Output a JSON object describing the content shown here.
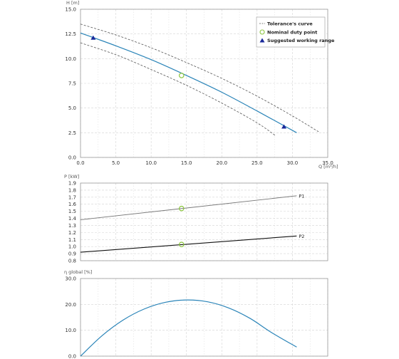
{
  "colors": {
    "main_curve": "#2a84b8",
    "tolerance": "#555555",
    "duty_point": "#8cc63f",
    "working_range": "#1a2a9a",
    "p1": "#777777",
    "p2": "#111111",
    "efficiency": "#2a84b8",
    "grid": "#d4d4d4"
  },
  "chart_data": [
    {
      "id": "head",
      "type": "line",
      "xlabel": "Q [m³/h]",
      "ylabel": "H [m]",
      "xlim": [
        0,
        35
      ],
      "ylim": [
        0,
        15
      ],
      "x_ticks": [
        "0.0",
        "5.0",
        "10.0",
        "15.0",
        "20.0",
        "25.0",
        "30.0",
        "35.0"
      ],
      "y_ticks": [
        "0.0",
        "2.5",
        "5.0",
        "7.5",
        "10.0",
        "12.5",
        "15.0"
      ],
      "grid": true,
      "legend": {
        "placement": "top-right",
        "entries": [
          "Tolerance's curve",
          "Nominal duty point",
          "Suggested working range"
        ]
      },
      "series": [
        {
          "key": "main",
          "style": "solid",
          "x": [
            0,
            5,
            10,
            15,
            20,
            25,
            30.6
          ],
          "y": [
            12.6,
            11.3,
            9.9,
            8.3,
            6.6,
            4.7,
            2.5
          ]
        },
        {
          "key": "tol_upper",
          "style": "dashed",
          "x": [
            0,
            5,
            10,
            15,
            20,
            25,
            30,
            33.7
          ],
          "y": [
            13.5,
            12.4,
            11.1,
            9.6,
            8.0,
            6.2,
            4.2,
            2.6
          ]
        },
        {
          "key": "tol_lower",
          "style": "dashed",
          "x": [
            0,
            5,
            10,
            15,
            20,
            25,
            27.6
          ],
          "y": [
            11.6,
            10.4,
            8.9,
            7.3,
            5.5,
            3.5,
            2.2
          ]
        }
      ],
      "points": [
        {
          "key": "duty",
          "marker": "circle",
          "x": 14.3,
          "y": 8.3
        },
        {
          "key": "range_start",
          "marker": "triangle",
          "x": 1.8,
          "y": 12.1
        },
        {
          "key": "range_end",
          "marker": "triangle",
          "x": 28.8,
          "y": 3.1
        }
      ]
    },
    {
      "id": "power",
      "type": "line",
      "xlabel": "",
      "ylabel": "P [kW]",
      "xlim": [
        0,
        35
      ],
      "ylim": [
        0.8,
        1.9
      ],
      "y_ticks": [
        "0.8",
        "0.9",
        "1.0",
        "1.1",
        "1.2",
        "1.3",
        "1.4",
        "1.5",
        "1.6",
        "1.7",
        "1.8",
        "1.9"
      ],
      "grid": true,
      "series": [
        {
          "key": "p1",
          "name": "P1",
          "x": [
            0,
            30.6
          ],
          "y": [
            1.38,
            1.72
          ]
        },
        {
          "key": "p2",
          "name": "P2",
          "x": [
            0,
            30.6
          ],
          "y": [
            0.92,
            1.15
          ]
        }
      ],
      "points": [
        {
          "key": "duty_p1",
          "marker": "circle",
          "x": 14.3,
          "y": 1.54
        },
        {
          "key": "duty_p2",
          "marker": "circle",
          "x": 14.3,
          "y": 1.03
        }
      ]
    },
    {
      "id": "efficiency",
      "type": "line",
      "xlabel": "",
      "ylabel": "η global [%]",
      "xlim": [
        0,
        35
      ],
      "ylim": [
        0,
        30
      ],
      "y_ticks": [
        "0.0",
        "10.0",
        "20.0",
        "30.0"
      ],
      "grid": true,
      "series": [
        {
          "key": "eta",
          "x": [
            0,
            3,
            6,
            9,
            12,
            15,
            18,
            21,
            24,
            27,
            30.6
          ],
          "y": [
            0,
            7.8,
            13.9,
            18.2,
            20.8,
            21.7,
            21.0,
            18.6,
            14.6,
            9.2,
            3.5
          ]
        }
      ]
    }
  ]
}
